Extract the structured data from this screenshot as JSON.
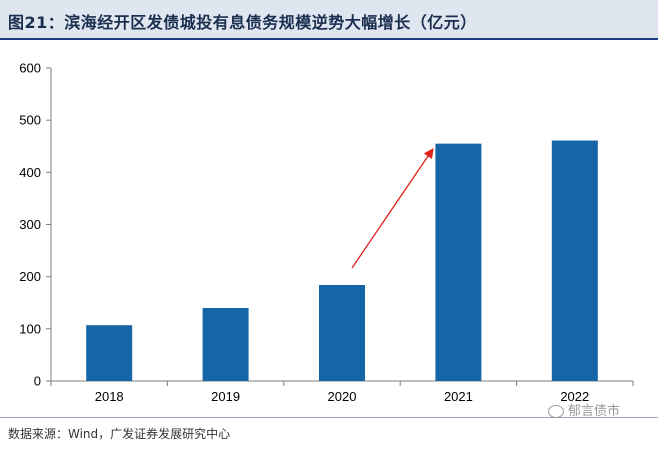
{
  "title": "图21：滨海经开区发债城投有息债务规模逆势大幅增长（亿元）",
  "source": "数据来源：Wind，广发证券发展研究中心",
  "watermark": "郁言债市",
  "colors": {
    "bar": "#1565a7",
    "arrow": "#e0201c",
    "title_band": "#dfe6f0"
  },
  "chart_data": {
    "type": "bar",
    "categories": [
      "2018",
      "2019",
      "2020",
      "2021",
      "2022"
    ],
    "values": [
      107,
      140,
      184,
      455,
      461
    ],
    "ylim": [
      0,
      600
    ],
    "yticks": [
      0,
      100,
      200,
      300,
      400,
      500,
      600
    ],
    "grid": false,
    "annotations": [
      {
        "type": "arrow",
        "from_category": "2020",
        "to_category": "2021"
      }
    ]
  }
}
